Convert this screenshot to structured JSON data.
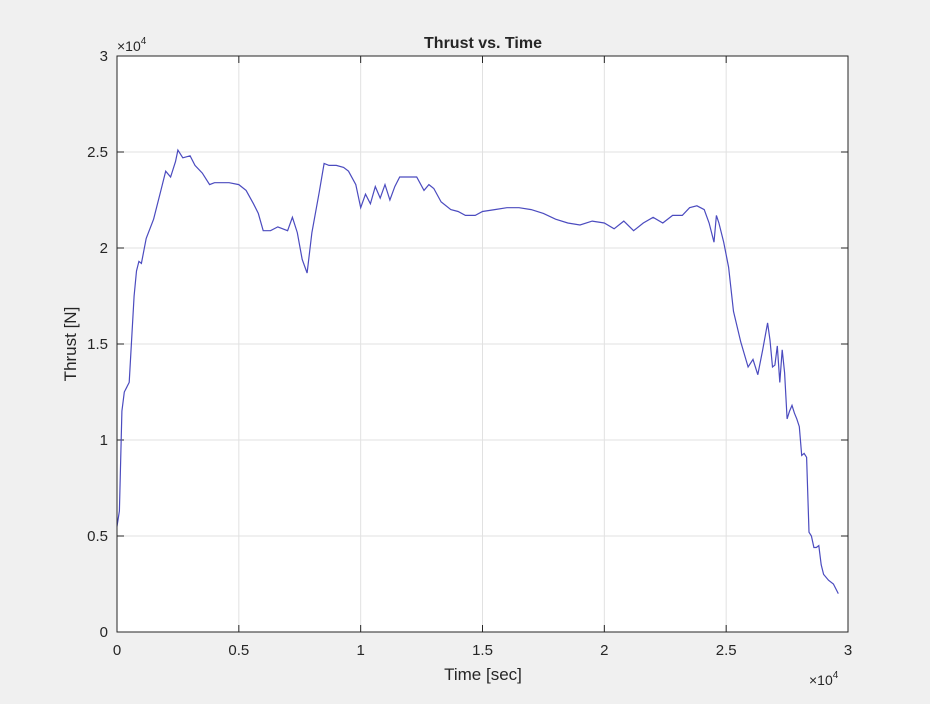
{
  "chart_data": {
    "type": "line",
    "title": "Thrust vs. Time",
    "xlabel": "Time [sec]",
    "ylabel": "Thrust [N]",
    "xlim": [
      0,
      30000
    ],
    "ylim": [
      0,
      30000
    ],
    "x_exponent_label": "×10",
    "x_exponent_power": "4",
    "y_exponent_label": "×10",
    "y_exponent_power": "4",
    "x_ticks": [
      0,
      5000,
      10000,
      15000,
      20000,
      25000,
      30000
    ],
    "x_tick_labels": [
      "0",
      "0.5",
      "1",
      "1.5",
      "2",
      "2.5",
      "3"
    ],
    "y_ticks": [
      0,
      5000,
      10000,
      15000,
      20000,
      25000,
      30000
    ],
    "y_tick_labels": [
      "0",
      "0.5",
      "1",
      "1.5",
      "2",
      "2.5",
      "3"
    ],
    "grid": true,
    "line_color": "#4b4bbf",
    "series": [
      {
        "x": [
          0,
          100,
          200,
          300,
          500,
          700,
          800,
          900,
          1000,
          1200,
          1500,
          1800,
          2000,
          2200,
          2400,
          2500,
          2700,
          3000,
          3200,
          3500,
          3800,
          4000,
          4300,
          4600,
          5000,
          5300,
          5600,
          5800,
          6000,
          6300,
          6600,
          7000,
          7200,
          7400,
          7600,
          7800,
          8000,
          8300,
          8500,
          8700,
          9000,
          9300,
          9500,
          9800,
          10000,
          10200,
          10400,
          10600,
          10800,
          11000,
          11200,
          11400,
          11600,
          12000,
          12300,
          12600,
          12800,
          13000,
          13300,
          13700,
          14000,
          14300,
          14700,
          15000,
          15500,
          16000,
          16500,
          17000,
          17500,
          18000,
          18500,
          19000,
          19500,
          20000,
          20400,
          20800,
          21200,
          21600,
          22000,
          22400,
          22800,
          23200,
          23500,
          23800,
          24100,
          24300,
          24500,
          24600,
          24700,
          24900,
          25100,
          25300,
          25600,
          25900,
          26100,
          26300,
          26500,
          26700,
          26800,
          26900,
          27000,
          27100,
          27200,
          27300,
          27400,
          27500,
          27600,
          27700,
          27800,
          27900,
          28000,
          28100,
          28200,
          28300,
          28400,
          28500,
          28600,
          28700,
          28800,
          28900,
          29000,
          29200,
          29400,
          29600
        ],
        "y": [
          5500,
          6300,
          11500,
          12500,
          13000,
          17500,
          18800,
          19300,
          19200,
          20500,
          21500,
          23000,
          24000,
          23700,
          24500,
          25100,
          24700,
          24800,
          24300,
          23900,
          23300,
          23400,
          23400,
          23400,
          23300,
          23000,
          22300,
          21800,
          20900,
          20900,
          21100,
          20900,
          21600,
          20800,
          19400,
          18700,
          20800,
          22900,
          24400,
          24300,
          24300,
          24200,
          24000,
          23300,
          22100,
          22800,
          22300,
          23200,
          22600,
          23300,
          22500,
          23200,
          23700,
          23700,
          23700,
          23000,
          23300,
          23100,
          22400,
          22000,
          21900,
          21700,
          21700,
          21900,
          22000,
          22100,
          22100,
          22000,
          21800,
          21500,
          21300,
          21200,
          21400,
          21300,
          21000,
          21400,
          20900,
          21300,
          21600,
          21300,
          21700,
          21700,
          22100,
          22200,
          22000,
          21300,
          20300,
          21700,
          21300,
          20300,
          19000,
          16700,
          15100,
          13800,
          14200,
          13400,
          14700,
          16100,
          15200,
          13800,
          13900,
          14900,
          13000,
          14700,
          13500,
          11100,
          11500,
          11800,
          11400,
          11100,
          10700,
          9200,
          9300,
          9100,
          5200,
          5000,
          4400,
          4400,
          4500,
          3500,
          3000,
          2700,
          2500,
          2000
        ]
      }
    ]
  }
}
